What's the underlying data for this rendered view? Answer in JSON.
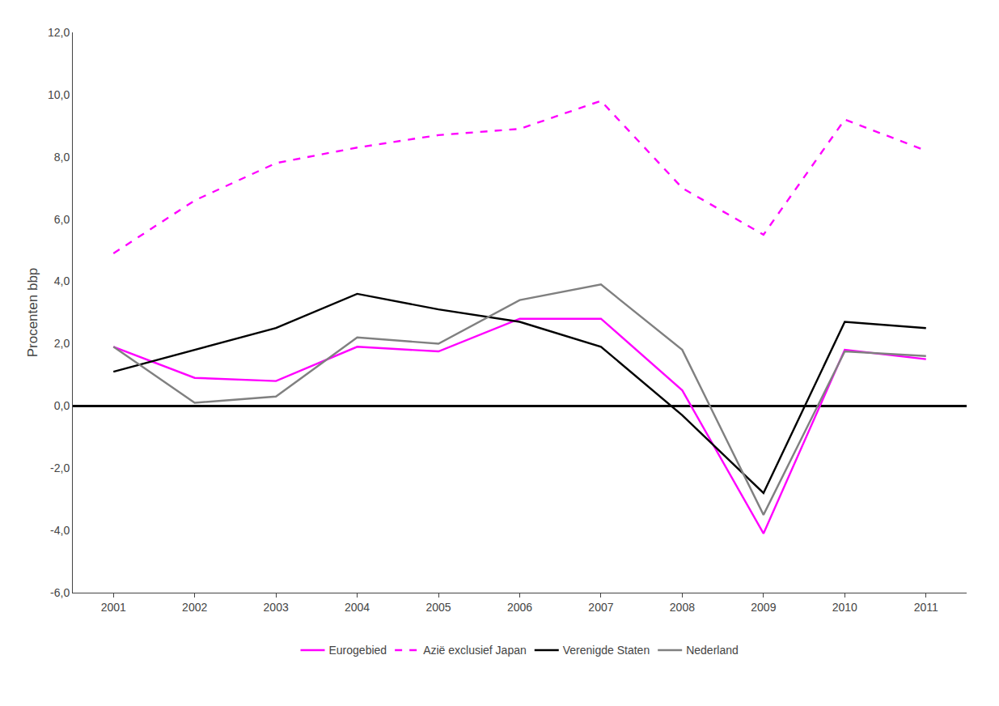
{
  "chart_data": {
    "type": "line",
    "x": [
      2001,
      2002,
      2003,
      2004,
      2005,
      2006,
      2007,
      2008,
      2009,
      2010,
      2011
    ],
    "series": [
      {
        "name": "Eurogebied",
        "color": "#ff00ff",
        "line_style": "solid",
        "values": [
          1.9,
          0.9,
          0.8,
          1.9,
          1.75,
          2.8,
          2.8,
          0.5,
          -4.1,
          1.8,
          1.5
        ]
      },
      {
        "name": "Azië exclusief Japan",
        "color": "#ff00ff",
        "line_style": "dashed",
        "values": [
          4.9,
          6.6,
          7.8,
          8.3,
          8.7,
          8.9,
          9.8,
          7.0,
          5.5,
          9.2,
          8.2
        ]
      },
      {
        "name": "Verenigde Staten",
        "color": "#000000",
        "line_style": "solid",
        "values": [
          1.1,
          1.8,
          2.5,
          3.6,
          3.1,
          2.7,
          1.9,
          -0.3,
          -2.8,
          2.7,
          2.5
        ]
      },
      {
        "name": "Nederland",
        "color": "#808080",
        "line_style": "solid",
        "values": [
          1.9,
          0.1,
          0.3,
          2.2,
          2.0,
          3.4,
          3.9,
          1.8,
          -3.5,
          1.75,
          1.6
        ]
      }
    ],
    "ylabel": "Procenten bbp",
    "xlim": [
      2000.5,
      2011.5
    ],
    "xticks": [
      2001,
      2002,
      2003,
      2004,
      2005,
      2006,
      2007,
      2008,
      2009,
      2010,
      2011
    ],
    "ylim": [
      -6,
      12
    ],
    "yticks": [
      {
        "value": -6,
        "label": "-6,0"
      },
      {
        "value": -4,
        "label": "-4,0"
      },
      {
        "value": -2,
        "label": "-2,0"
      },
      {
        "value": 0,
        "label": "0,0"
      },
      {
        "value": 2,
        "label": "2,0"
      },
      {
        "value": 4,
        "label": "4,0"
      },
      {
        "value": 6,
        "label": "6,0"
      },
      {
        "value": 8,
        "label": "8,0"
      },
      {
        "value": 10,
        "label": "10,0"
      },
      {
        "value": 12,
        "label": "12,0"
      }
    ],
    "grid": false,
    "legend": "bottom"
  }
}
